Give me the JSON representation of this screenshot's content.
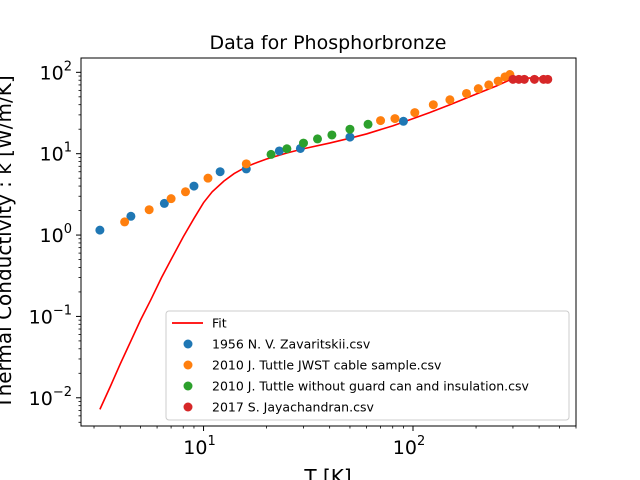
{
  "chart_data": {
    "type": "scatter",
    "title": "Data for Phosphorbronze",
    "xlabel": "T [K]",
    "ylabel": "Thermal Conductivity : k [W/m/K]",
    "xscale": "log",
    "yscale": "log",
    "xlim": [
      2.6,
      600
    ],
    "ylim": [
      0.0045,
      150
    ],
    "grid": false,
    "legend_position": "bottom-right",
    "x_ticks": [
      {
        "value": 10,
        "base": "10",
        "exp": "1"
      },
      {
        "value": 100,
        "base": "10",
        "exp": "2"
      }
    ],
    "y_ticks": [
      {
        "value": 0.01,
        "base": "10",
        "exp": "−2"
      },
      {
        "value": 0.1,
        "base": "10",
        "exp": "−1"
      },
      {
        "value": 1,
        "base": "10",
        "exp": "0"
      },
      {
        "value": 10,
        "base": "10",
        "exp": "1"
      },
      {
        "value": 100,
        "base": "10",
        "exp": "2"
      }
    ],
    "fit": {
      "name": "Fit",
      "color": "#ff0000",
      "points": [
        [
          3.2,
          0.0072
        ],
        [
          3.6,
          0.014
        ],
        [
          4,
          0.026
        ],
        [
          4.5,
          0.05
        ],
        [
          5,
          0.09
        ],
        [
          5.6,
          0.16
        ],
        [
          6.3,
          0.3
        ],
        [
          7,
          0.5
        ],
        [
          8,
          0.95
        ],
        [
          9,
          1.6
        ],
        [
          10,
          2.5
        ],
        [
          11,
          3.4
        ],
        [
          12.5,
          4.6
        ],
        [
          14,
          5.7
        ],
        [
          16,
          6.9
        ],
        [
          18,
          7.8
        ],
        [
          20,
          8.6
        ],
        [
          25,
          10.2
        ],
        [
          30,
          11.5
        ],
        [
          40,
          13.5
        ],
        [
          50,
          15.5
        ],
        [
          60,
          17.5
        ],
        [
          80,
          22
        ],
        [
          100,
          27
        ],
        [
          120,
          32
        ],
        [
          150,
          40
        ],
        [
          200,
          54
        ],
        [
          250,
          68
        ],
        [
          300,
          84
        ],
        [
          350,
          85
        ],
        [
          400,
          85
        ],
        [
          450,
          84
        ]
      ]
    },
    "series": [
      {
        "name": "1956 N. V. Zavaritskii.csv",
        "color": "#1f77b4",
        "points": [
          [
            3.2,
            1.15
          ],
          [
            4.5,
            1.7
          ],
          [
            6.5,
            2.45
          ],
          [
            9,
            4.0
          ],
          [
            12,
            6.0
          ],
          [
            16,
            6.5
          ],
          [
            23,
            10.8
          ],
          [
            29,
            11.6
          ],
          [
            50,
            16.0
          ],
          [
            90,
            25.0
          ]
        ]
      },
      {
        "name": "2010 J. Tuttle JWST cable sample.csv",
        "color": "#ff7f0e",
        "points": [
          [
            4.2,
            1.45
          ],
          [
            5.5,
            2.05
          ],
          [
            7,
            2.8
          ],
          [
            8.2,
            3.4
          ],
          [
            10.5,
            5.0
          ],
          [
            16,
            7.5
          ],
          [
            70,
            25.5
          ],
          [
            82,
            27.0
          ],
          [
            102,
            32.0
          ],
          [
            125,
            40.0
          ],
          [
            150,
            46.0
          ],
          [
            180,
            55.0
          ],
          [
            205,
            63.0
          ],
          [
            230,
            70.0
          ],
          [
            255,
            78.0
          ],
          [
            275,
            88.0
          ],
          [
            290,
            94.0
          ]
        ]
      },
      {
        "name": "2010 J. Tuttle without guard can and insulation.csv",
        "color": "#2ca02c",
        "points": [
          [
            21,
            9.8
          ],
          [
            25,
            11.5
          ],
          [
            30,
            13.5
          ],
          [
            35,
            15.2
          ],
          [
            41,
            17.0
          ],
          [
            50,
            20.0
          ],
          [
            61,
            23.0
          ]
        ]
      },
      {
        "name": "2017 S. Jayachandran.csv",
        "color": "#d62728",
        "points": [
          [
            300,
            82.0
          ],
          [
            320,
            82.0
          ],
          [
            340,
            82.0
          ],
          [
            380,
            82.0
          ],
          [
            420,
            82.0
          ],
          [
            440,
            82.0
          ]
        ]
      }
    ]
  }
}
